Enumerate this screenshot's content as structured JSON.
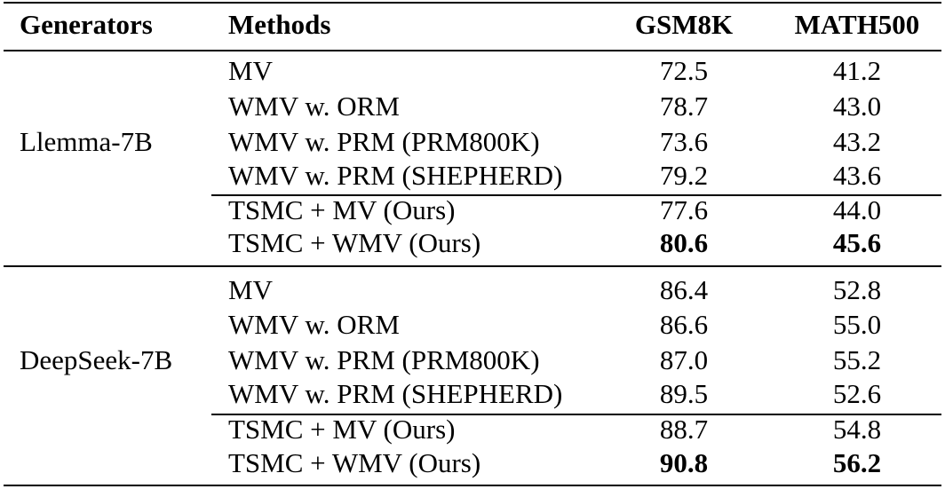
{
  "table": {
    "headers": {
      "generators": "Generators",
      "methods": "Methods",
      "gsm8k": "GSM8K",
      "math500": "MATH500"
    },
    "groups": [
      {
        "generator": "Llemma-7B",
        "rows": [
          {
            "method": "MV",
            "gsm8k": "72.5",
            "math500": "41.2"
          },
          {
            "method": "WMV w. ORM",
            "gsm8k": "78.7",
            "math500": "43.0"
          },
          {
            "method": "WMV w. PRM (PRM800K)",
            "gsm8k": "73.6",
            "math500": "43.2"
          },
          {
            "method": "WMV w. PRM (SHEPHERD)",
            "gsm8k": "79.2",
            "math500": "43.6"
          },
          {
            "method": "TSMC + MV (Ours)",
            "gsm8k": "77.6",
            "math500": "44.0"
          },
          {
            "method": "TSMC + WMV (Ours)",
            "gsm8k": "80.6",
            "math500": "45.6"
          }
        ]
      },
      {
        "generator": "DeepSeek-7B",
        "rows": [
          {
            "method": "MV",
            "gsm8k": "86.4",
            "math500": "52.8"
          },
          {
            "method": "WMV w. ORM",
            "gsm8k": "86.6",
            "math500": "55.0"
          },
          {
            "method": "WMV w. PRM (PRM800K)",
            "gsm8k": "87.0",
            "math500": "55.2"
          },
          {
            "method": "WMV w. PRM (SHEPHERD)",
            "gsm8k": "89.5",
            "math500": "52.6"
          },
          {
            "method": "TSMC + MV (Ours)",
            "gsm8k": "88.7",
            "math500": "54.8"
          },
          {
            "method": "TSMC + WMV (Ours)",
            "gsm8k": "90.8",
            "math500": "56.2"
          }
        ]
      }
    ]
  }
}
